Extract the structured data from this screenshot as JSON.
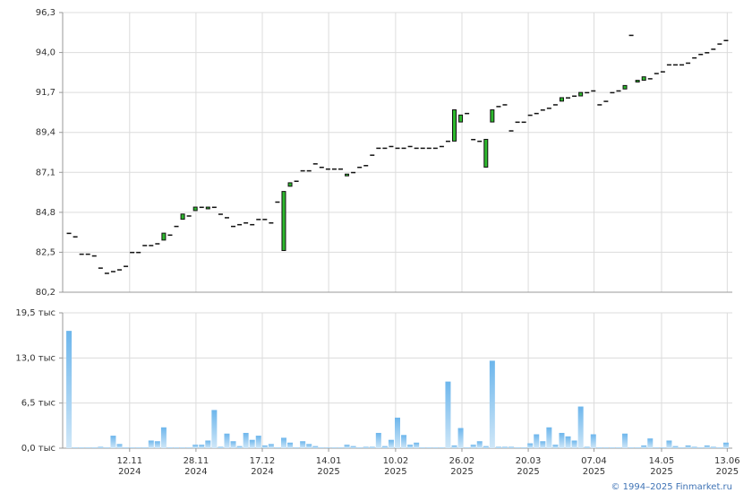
{
  "chart_data": [
    {
      "type": "candlestick",
      "open": [
        83.6,
        83.4,
        82.4,
        82.4,
        82.3,
        81.6,
        81.3,
        81.4,
        81.5,
        81.7,
        82.5,
        82.5,
        82.9,
        82.9,
        83.0,
        83.2,
        83.5,
        84.0,
        84.4,
        84.6,
        84.9,
        85.1,
        85.0,
        85.1,
        84.7,
        84.5,
        84.0,
        84.1,
        84.2,
        84.1,
        84.4,
        84.4,
        84.2,
        85.4,
        82.6,
        86.3,
        86.6,
        87.2,
        87.2,
        87.6,
        87.4,
        87.3,
        87.3,
        87.3,
        86.9,
        87.1,
        87.4,
        87.5,
        88.1,
        88.5,
        88.5,
        88.6,
        88.5,
        88.5,
        88.6,
        88.5,
        88.5,
        88.5,
        88.5,
        88.6,
        88.9,
        88.9,
        90.0,
        90.5,
        89.0,
        88.9,
        87.4,
        90.0,
        90.9,
        91.0,
        89.5,
        90.0,
        90.0,
        90.4,
        90.5,
        90.7,
        90.8,
        91.0,
        91.2,
        91.4,
        91.5,
        91.5,
        91.7,
        91.8,
        91.0,
        91.2,
        91.7,
        91.8,
        91.9,
        95.0,
        92.3,
        92.4,
        92.5,
        92.8,
        92.9,
        93.3,
        93.3,
        93.3,
        93.4,
        93.7,
        93.9,
        94.0,
        94.2,
        94.5,
        94.7
      ],
      "close": [
        83.6,
        83.4,
        82.4,
        82.4,
        82.3,
        81.6,
        81.3,
        81.4,
        81.5,
        81.7,
        82.5,
        82.5,
        82.9,
        82.9,
        83.0,
        83.6,
        83.5,
        84.0,
        84.7,
        84.6,
        85.1,
        85.1,
        85.1,
        85.1,
        84.7,
        84.5,
        84.0,
        84.1,
        84.2,
        84.1,
        84.4,
        84.4,
        84.2,
        85.4,
        86.0,
        86.5,
        86.6,
        87.2,
        87.2,
        87.6,
        87.4,
        87.3,
        87.3,
        87.3,
        87.0,
        87.1,
        87.4,
        87.5,
        88.1,
        88.5,
        88.5,
        88.6,
        88.5,
        88.5,
        88.6,
        88.5,
        88.5,
        88.5,
        88.5,
        88.6,
        88.9,
        90.7,
        90.4,
        90.5,
        89.0,
        88.9,
        89.0,
        90.7,
        90.9,
        91.0,
        89.5,
        90.0,
        90.0,
        90.4,
        90.5,
        90.7,
        90.8,
        91.0,
        91.4,
        91.4,
        91.5,
        91.7,
        91.7,
        91.8,
        91.0,
        91.2,
        91.7,
        91.8,
        92.1,
        95.0,
        92.4,
        92.6,
        92.5,
        92.8,
        92.9,
        93.3,
        93.3,
        93.3,
        93.4,
        93.7,
        93.9,
        94.0,
        94.2,
        94.5,
        94.7
      ],
      "up_color": "#2db82d",
      "xlim": [
        -1,
        105
      ],
      "ylim": [
        80.2,
        96.3
      ],
      "yticks": [
        {
          "value": 80.2,
          "label": "80,2"
        },
        {
          "value": 82.5,
          "label": "82,5"
        },
        {
          "value": 84.8,
          "label": "84,8"
        },
        {
          "value": 87.1,
          "label": "87,1"
        },
        {
          "value": 89.4,
          "label": "89,4"
        },
        {
          "value": 91.7,
          "label": "91,7"
        },
        {
          "value": 94.0,
          "label": "94,0"
        },
        {
          "value": 96.3,
          "label": "96,3"
        }
      ],
      "grid": true
    },
    {
      "type": "bar",
      "values": [
        16.9,
        0.1,
        0.1,
        0.1,
        0.1,
        0.2,
        0.1,
        1.8,
        0.6,
        0.1,
        0.1,
        0.1,
        0.1,
        1.1,
        1.0,
        3.0,
        0.1,
        0.1,
        0.1,
        0.1,
        0.5,
        0.5,
        1.1,
        5.5,
        0.2,
        2.1,
        1.0,
        0.3,
        2.2,
        1.2,
        1.8,
        0.4,
        0.6,
        0.1,
        1.5,
        0.8,
        0.1,
        1.0,
        0.6,
        0.3,
        0.1,
        0.1,
        0.1,
        0.1,
        0.5,
        0.3,
        0.1,
        0.2,
        0.2,
        2.2,
        0.3,
        1.2,
        4.4,
        1.9,
        0.5,
        0.8,
        0.1,
        0.1,
        0.1,
        0.1,
        9.6,
        0.4,
        2.9,
        0.1,
        0.5,
        1.0,
        0.3,
        12.6,
        0.2,
        0.2,
        0.2,
        0.1,
        0.1,
        0.7,
        2.0,
        1.0,
        3.0,
        0.5,
        2.2,
        1.7,
        1.1,
        6.0,
        0.2,
        2.0,
        0.1,
        0.1,
        0.1,
        0.1,
        2.1,
        0.1,
        0.1,
        0.4,
        1.4,
        0.1,
        0.1,
        1.1,
        0.3,
        0.1,
        0.4,
        0.2,
        0.1,
        0.4,
        0.2,
        0.1,
        0.8
      ],
      "color": "#8cc6ee",
      "xlim": [
        -1,
        105
      ],
      "ylim": [
        0,
        19.5
      ],
      "yticks": [
        {
          "value": 0,
          "label": "0,0 тыс"
        },
        {
          "value": 6.5,
          "label": "6,5 тыс"
        },
        {
          "value": 13,
          "label": "13,0 тыс"
        },
        {
          "value": 19.5,
          "label": "19,5 тыс"
        }
      ],
      "xticks": [
        {
          "value": 9.6,
          "label": [
            "12.11",
            "2024"
          ]
        },
        {
          "value": 20.1,
          "label": [
            "28.11",
            "2024"
          ]
        },
        {
          "value": 30.6,
          "label": [
            "17.12",
            "2024"
          ]
        },
        {
          "value": 41.1,
          "label": [
            "14.01",
            "2025"
          ]
        },
        {
          "value": 51.7,
          "label": [
            "10.02",
            "2025"
          ]
        },
        {
          "value": 62.2,
          "label": [
            "26.02",
            "2025"
          ]
        },
        {
          "value": 72.7,
          "label": [
            "20.03",
            "2025"
          ]
        },
        {
          "value": 83.1,
          "label": [
            "07.04",
            "2025"
          ]
        },
        {
          "value": 93.8,
          "label": [
            "14.05",
            "2025"
          ]
        },
        {
          "value": 104.2,
          "label": [
            "13.06",
            "2025"
          ]
        }
      ],
      "grid": true
    }
  ],
  "footer": "© 1994–2025 Finmarket.ru"
}
